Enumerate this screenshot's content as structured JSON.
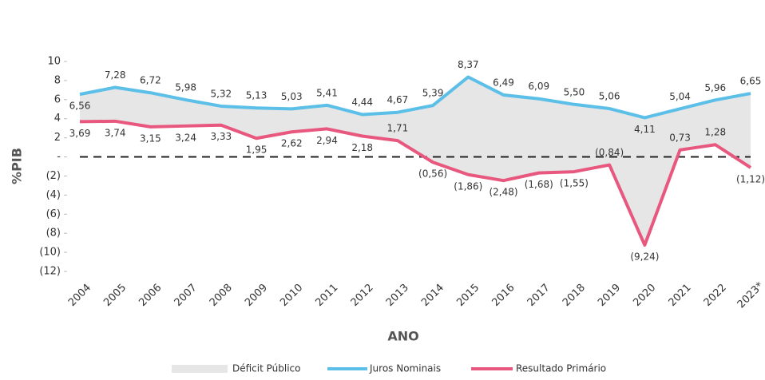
{
  "chart_data": {
    "type": "line",
    "y_label": "%PIB",
    "x_label": "ANO",
    "categories": [
      "2004",
      "2005",
      "2006",
      "2007",
      "2008",
      "2009",
      "2010",
      "2011",
      "2012",
      "2013",
      "2014",
      "2015",
      "2016",
      "2017",
      "2018",
      "2019",
      "2020",
      "2021",
      "2022",
      "2023*"
    ],
    "area_legend": {
      "name": "Déficit Público",
      "color": "#e6e6e6"
    },
    "series": [
      {
        "name": "Juros Nominais",
        "color": "#5bbfe8",
        "values": [
          6.56,
          7.28,
          6.72,
          5.98,
          5.32,
          5.13,
          5.03,
          5.41,
          4.44,
          4.67,
          5.39,
          8.37,
          6.49,
          6.09,
          5.5,
          5.06,
          4.11,
          5.04,
          5.96,
          6.65
        ],
        "value_labels": [
          "6,56",
          "7,28",
          "6,72",
          "5,98",
          "5,32",
          "5,13",
          "5,03",
          "5,41",
          "4,44",
          "4,67",
          "5,39",
          "8,37",
          "6,49",
          "6,09",
          "5,50",
          "5,06",
          "4,11",
          "5,04",
          "5,96",
          "6,65"
        ]
      },
      {
        "name": "Resultado Primário",
        "color": "#e8577e",
        "values": [
          3.69,
          3.74,
          3.15,
          3.24,
          3.33,
          1.95,
          2.62,
          2.94,
          2.18,
          1.71,
          -0.56,
          -1.86,
          -2.48,
          -1.68,
          -1.55,
          -0.84,
          -9.24,
          0.73,
          1.28,
          -1.12
        ],
        "value_labels": [
          "3,69",
          "3,74",
          "3,15",
          "3,24",
          "3,33",
          "1,95",
          "2,62",
          "2,94",
          "2,18",
          "1,71",
          "(0,56)",
          "(1,86)",
          "(2,48)",
          "(1,68)",
          "(1,55)",
          "(0,84)",
          "(9,24)",
          "0,73",
          "1,28",
          "(1,12)"
        ]
      }
    ],
    "ylim": [
      -12,
      10
    ],
    "yticks": [
      10,
      8,
      6,
      4,
      2,
      {
        "value": 0,
        "label": "-"
      },
      {
        "value": -2,
        "label": "(2)"
      },
      {
        "value": -4,
        "label": "(4)"
      },
      {
        "value": -6,
        "label": "(6)"
      },
      {
        "value": -8,
        "label": "(8)"
      },
      {
        "value": -10,
        "label": "(10)"
      },
      {
        "value": -12,
        "label": "(12)"
      }
    ],
    "zero_line": true
  }
}
